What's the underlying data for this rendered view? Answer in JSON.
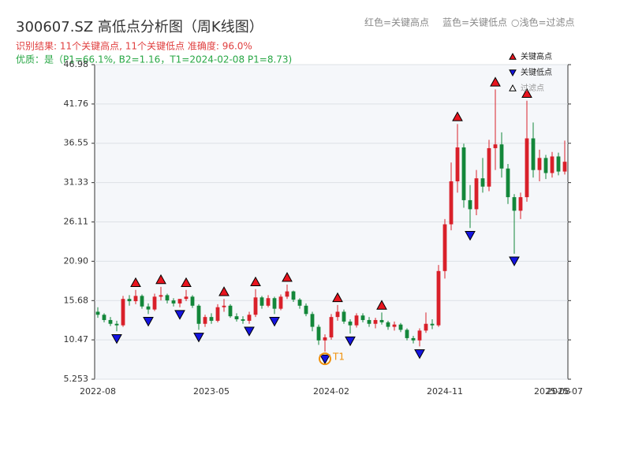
{
  "chart_data": {
    "type": "candlestick",
    "title": "300607.SZ 高低点分析图（周K线图）",
    "header_legend": [
      "红色=关键高点",
      "蓝色=关键低点",
      "○浅色=过滤点"
    ],
    "result_line": "识别结果: 11个关键高点, 11个关键低点  准确度: 96.0%",
    "quality_line": "优质：是（P1=66.1%, B2=1.16，T1=2024-02-08 P1=8.73)",
    "annotation": "T1",
    "categories": [
      "2022-08",
      null,
      null,
      null,
      null,
      null,
      null,
      null,
      null,
      null,
      null,
      null,
      null,
      null,
      null,
      null,
      null,
      null,
      "2023-05",
      null,
      null,
      null,
      null,
      null,
      null,
      null,
      null,
      null,
      null,
      null,
      null,
      null,
      null,
      null,
      null,
      null,
      null,
      "2024-02",
      null,
      null,
      null,
      null,
      null,
      null,
      null,
      null,
      null,
      null,
      null,
      null,
      null,
      null,
      null,
      null,
      null,
      "2024-11",
      null,
      null,
      null,
      null,
      null,
      null,
      null,
      null,
      null,
      null,
      null,
      null,
      null,
      null,
      null,
      null,
      "2025-08",
      null,
      "2025-07"
    ],
    "open": [
      14.2,
      13.8,
      13.1,
      12.6,
      12.4,
      15.9,
      15.6,
      16.3,
      14.9,
      14.5,
      16.2,
      16.4,
      15.7,
      15.3,
      15.9,
      16.2,
      15.0,
      12.6,
      13.5,
      13.0,
      14.8,
      15.0,
      13.6,
      13.2,
      13.0,
      13.8,
      16.1,
      15.0,
      16.0,
      14.6,
      16.2,
      16.9,
      15.8,
      15.0,
      13.9,
      12.2,
      10.4,
      10.8,
      13.5,
      14.2,
      12.9,
      12.4,
      13.7,
      13.1,
      12.6,
      13.1,
      12.8,
      12.2,
      12.5,
      11.8,
      10.7,
      10.4,
      11.7,
      12.6,
      12.4,
      19.6,
      25.8,
      31.5,
      36.0,
      29.0,
      27.8,
      31.9,
      30.8,
      35.9,
      36.4,
      33.2,
      29.4,
      27.6,
      29.4,
      37.2,
      33.0,
      34.6,
      32.6,
      34.8,
      32.8
    ],
    "high": [
      14.8,
      14.0,
      13.5,
      13.0,
      16.3,
      16.4,
      17.1,
      16.5,
      15.3,
      16.6,
      17.5,
      16.6,
      16.0,
      15.6,
      17.1,
      16.4,
      15.2,
      13.8,
      14.0,
      15.2,
      15.9,
      15.2,
      14.0,
      13.6,
      14.2,
      17.2,
      16.3,
      16.4,
      16.2,
      16.5,
      17.8,
      17.0,
      16.0,
      15.3,
      14.2,
      12.5,
      11.2,
      13.9,
      15.1,
      14.5,
      13.2,
      14.0,
      14.0,
      13.5,
      13.4,
      14.1,
      13.0,
      12.9,
      12.7,
      12.0,
      11.0,
      12.0,
      14.1,
      13.2,
      20.4,
      26.5,
      34.0,
      39.1,
      36.5,
      31.0,
      33.0,
      34.6,
      37.0,
      43.7,
      38.0,
      33.8,
      29.8,
      30.0,
      42.2,
      39.3,
      35.7,
      35.0,
      35.4,
      35.3,
      36.9
    ],
    "low": [
      13.4,
      12.8,
      12.3,
      11.6,
      12.2,
      15.0,
      15.2,
      14.6,
      13.9,
      14.3,
      15.7,
      15.3,
      14.9,
      14.8,
      15.6,
      14.7,
      11.8,
      12.2,
      12.6,
      12.8,
      14.2,
      13.4,
      12.9,
      12.6,
      12.6,
      13.5,
      14.6,
      14.8,
      13.9,
      14.4,
      15.9,
      15.5,
      14.6,
      13.6,
      11.6,
      9.8,
      8.9,
      10.5,
      13.0,
      12.6,
      11.3,
      12.1,
      12.8,
      12.2,
      12.0,
      12.5,
      11.8,
      11.7,
      11.5,
      10.4,
      10.0,
      9.6,
      11.4,
      11.9,
      12.2,
      18.6,
      25.0,
      30.0,
      28.0,
      25.3,
      27.0,
      30.0,
      30.2,
      33.0,
      32.0,
      28.5,
      21.9,
      26.5,
      28.8,
      32.0,
      31.5,
      31.8,
      32.0,
      32.3,
      32.4
    ],
    "close": [
      13.8,
      13.1,
      12.6,
      12.4,
      15.9,
      15.6,
      16.3,
      14.9,
      14.5,
      16.2,
      16.4,
      15.7,
      15.3,
      15.9,
      16.2,
      15.0,
      12.6,
      13.5,
      13.0,
      14.8,
      15.0,
      13.6,
      13.2,
      13.0,
      13.8,
      16.1,
      15.0,
      16.0,
      14.6,
      16.2,
      16.9,
      15.8,
      15.0,
      13.9,
      12.2,
      10.4,
      10.8,
      13.5,
      14.2,
      12.9,
      12.4,
      13.7,
      13.1,
      12.6,
      13.1,
      12.8,
      12.2,
      12.5,
      11.8,
      10.7,
      10.4,
      11.7,
      12.6,
      12.4,
      19.6,
      25.8,
      31.5,
      36.0,
      29.0,
      27.8,
      31.9,
      30.8,
      35.9,
      36.4,
      33.2,
      29.4,
      27.6,
      29.4,
      37.2,
      33.0,
      34.6,
      32.6,
      34.8,
      32.8,
      34.1
    ],
    "up_color": "#d9202a",
    "down_color": "#13873a",
    "markers": [
      {
        "name": "关键高点",
        "color": "#e8141e",
        "shape": "up",
        "values": [
          null,
          null,
          null,
          null,
          null,
          null,
          17.1,
          null,
          null,
          null,
          17.5,
          null,
          null,
          null,
          17.1,
          null,
          null,
          null,
          null,
          null,
          15.9,
          null,
          null,
          null,
          null,
          17.2,
          null,
          null,
          null,
          null,
          17.8,
          null,
          null,
          null,
          null,
          null,
          null,
          null,
          15.1,
          null,
          null,
          null,
          null,
          null,
          null,
          14.1,
          null,
          null,
          null,
          null,
          null,
          null,
          null,
          null,
          null,
          null,
          null,
          39.1,
          null,
          null,
          null,
          null,
          null,
          43.7,
          null,
          null,
          null,
          null,
          42.2,
          null,
          null,
          null,
          null,
          null,
          null
        ]
      },
      {
        "name": "关键低点",
        "color": "#1414e0",
        "shape": "down",
        "values": [
          null,
          null,
          null,
          11.6,
          null,
          null,
          null,
          null,
          13.9,
          null,
          null,
          null,
          null,
          14.8,
          null,
          null,
          11.8,
          null,
          null,
          null,
          null,
          null,
          null,
          null,
          12.6,
          null,
          null,
          null,
          13.9,
          null,
          null,
          null,
          null,
          null,
          null,
          null,
          8.9,
          null,
          null,
          null,
          11.3,
          null,
          null,
          null,
          null,
          null,
          null,
          null,
          null,
          null,
          null,
          9.6,
          null,
          null,
          null,
          null,
          null,
          null,
          null,
          25.3,
          null,
          null,
          null,
          null,
          null,
          null,
          21.9,
          null,
          null,
          null,
          null,
          null,
          null,
          null,
          null
        ]
      },
      {
        "name": "过滤点",
        "color": "#ffffff",
        "shape": "up"
      }
    ],
    "annotation_color": "#f0900a",
    "ylim": [
      5.253,
      46.98
    ],
    "yticks": [
      5.253,
      10.47,
      15.68,
      {
        "value": 20.9,
        "label": "20.90"
      },
      26.11,
      31.33,
      36.55,
      41.76,
      46.98
    ],
    "grid": true
  }
}
